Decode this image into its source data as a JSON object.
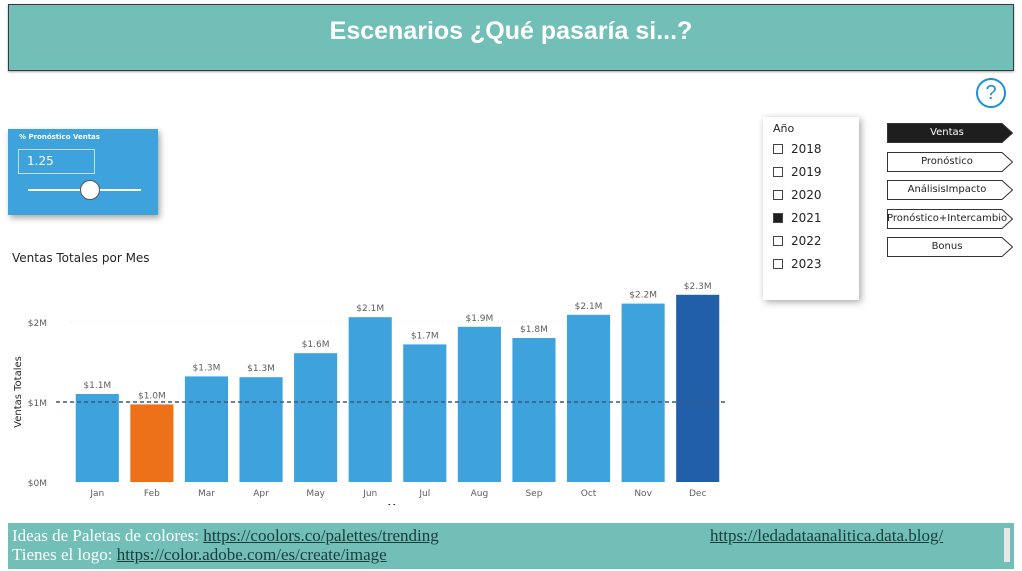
{
  "header": {
    "title": "Escenarios ¿Qué pasaría si...?"
  },
  "help": {
    "icon": "question-icon",
    "label": "?"
  },
  "slider": {
    "title": "% Pronóstico Ventas",
    "value": "1.25",
    "min": 0,
    "max": 2.5
  },
  "year_filter": {
    "title": "Año",
    "items": [
      {
        "label": "2018",
        "checked": false
      },
      {
        "label": "2019",
        "checked": false
      },
      {
        "label": "2020",
        "checked": false
      },
      {
        "label": "2021",
        "checked": true
      },
      {
        "label": "2022",
        "checked": false
      },
      {
        "label": "2023",
        "checked": false
      }
    ]
  },
  "nav": {
    "buttons": [
      {
        "label": "Ventas",
        "active": true
      },
      {
        "label": "Pronóstico",
        "active": false
      },
      {
        "label": "AnálisisImpacto",
        "active": false
      },
      {
        "label": "Pronóstico+Intercambio",
        "active": false
      },
      {
        "label": "Bonus",
        "active": false
      }
    ]
  },
  "footer": {
    "line1_prefix": "Ideas de Paletas de colores: ",
    "line1_link": "https://coolors.co/palettes/trending",
    "line2_prefix": "Tienes el logo: ",
    "line2_link": "https://color.adobe.com/es/create/image",
    "right_link": "https://ledadataanalitica.data.blog/"
  },
  "chart_data": {
    "type": "bar",
    "title": "Ventas Totales por Mes",
    "xlabel": "Mes",
    "ylabel": "Ventas Totales",
    "categories": [
      "Jan",
      "Feb",
      "Mar",
      "Apr",
      "May",
      "Jun",
      "Jul",
      "Aug",
      "Sep",
      "Oct",
      "Nov",
      "Dec"
    ],
    "values": [
      1.1,
      0.97,
      1.32,
      1.31,
      1.61,
      2.06,
      1.72,
      1.94,
      1.8,
      2.09,
      2.23,
      2.34
    ],
    "data_labels": [
      "$1.1M",
      "$1.0M",
      "$1.3M",
      "$1.3M",
      "$1.6M",
      "$2.1M",
      "$1.7M",
      "$1.9M",
      "$1.8M",
      "$2.1M",
      "$2.2M",
      "$2.3M"
    ],
    "yticks": [
      0,
      1,
      2
    ],
    "ytick_labels": [
      "$0M",
      "$1M",
      "$2M"
    ],
    "ylim": [
      0,
      2.5
    ],
    "reference_line": 1.0,
    "colors": {
      "default": "#3ea3dc",
      "min": "#ec7118",
      "max": "#2160a8"
    }
  }
}
